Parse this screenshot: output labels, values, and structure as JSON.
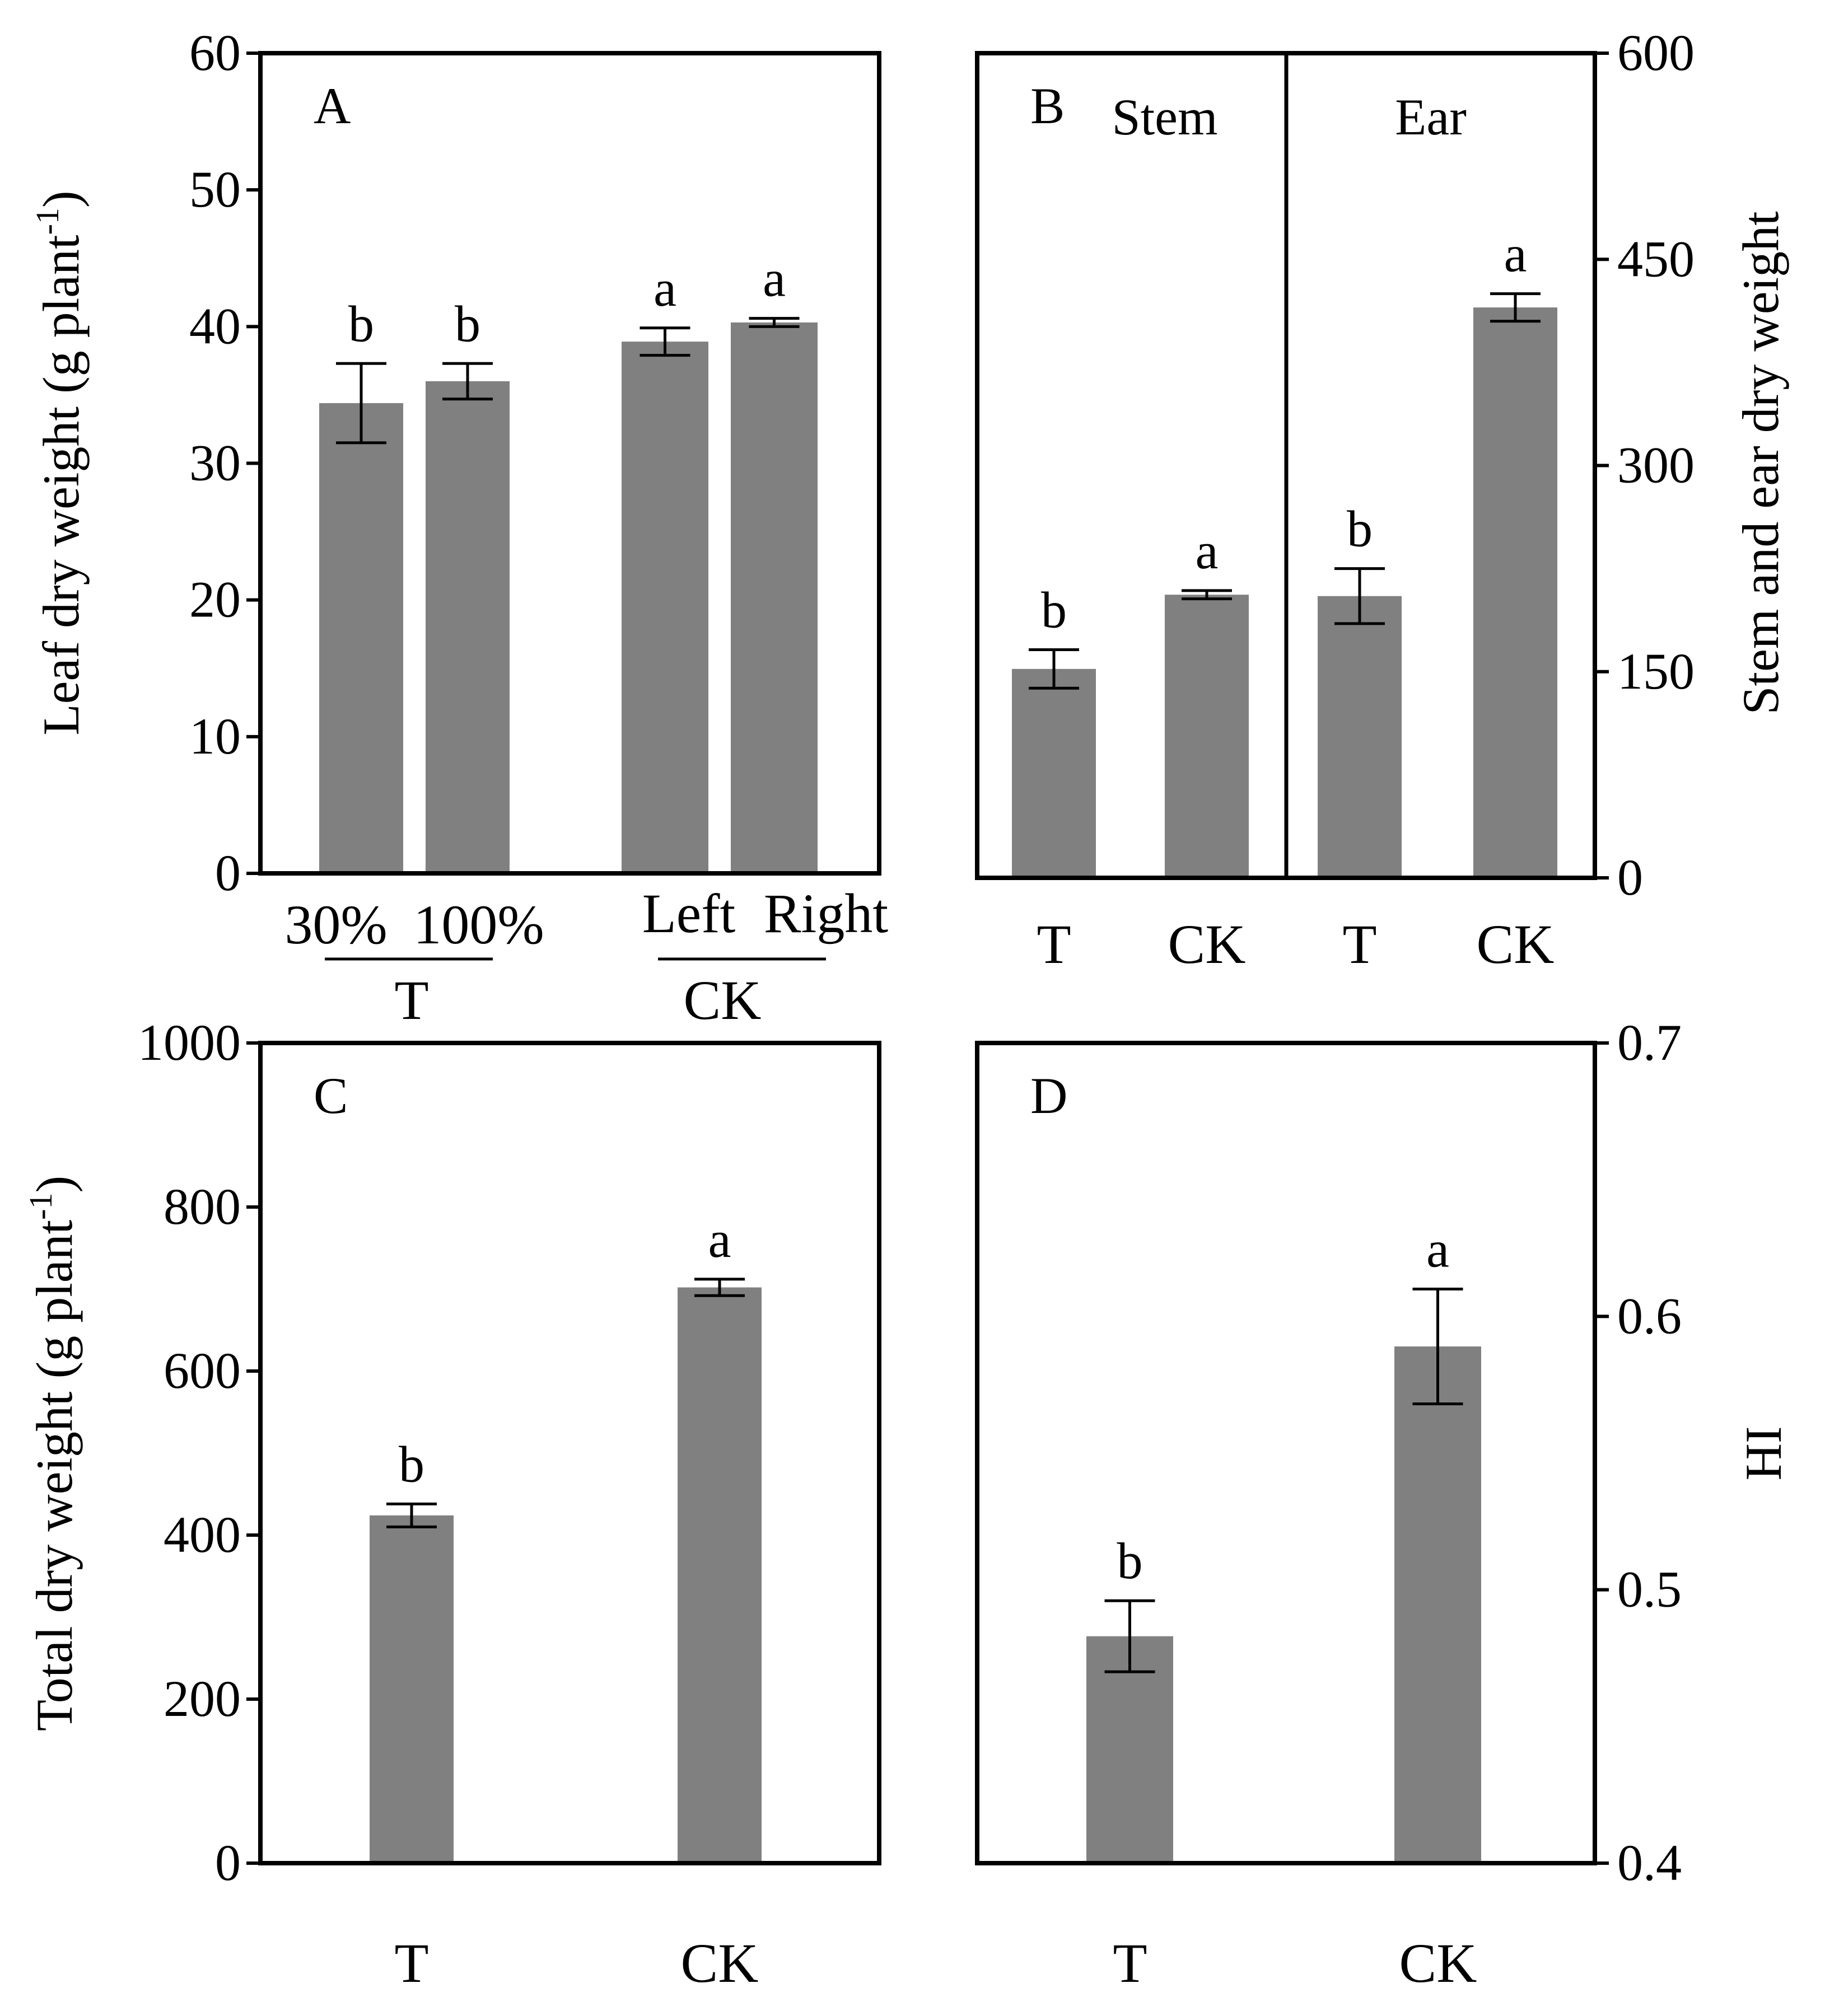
{
  "colors": {
    "bar": "#808080",
    "axis": "#000000",
    "background": "#ffffff"
  },
  "chart_data": [
    {
      "panel": "A",
      "type": "bar",
      "ylabel": "Leaf dry weight (g plant",
      "ylabel_sup": "-1",
      "ylabel_close": ")",
      "ylim": [
        0,
        60
      ],
      "yticks": [
        0,
        10,
        20,
        30,
        40,
        50,
        60
      ],
      "categories": [
        "30%",
        "100%",
        "Left",
        "Right"
      ],
      "groups": [
        {
          "label": "T",
          "members": [
            "30%",
            "100%"
          ]
        },
        {
          "label": "CK",
          "members": [
            "Left",
            "Right"
          ]
        }
      ],
      "values": [
        34.4,
        36.0,
        38.9,
        40.3
      ],
      "errors": [
        2.9,
        1.3,
        1.0,
        0.3
      ],
      "significance": [
        "b",
        "b",
        "a",
        "a"
      ]
    },
    {
      "panel": "B",
      "type": "bar",
      "ylabel": "Stem and ear dry weight",
      "yaxis_side": "right",
      "ylim": [
        0,
        600
      ],
      "yticks": [
        0,
        150,
        300,
        450,
        600
      ],
      "sections": [
        "Stem",
        "Ear"
      ],
      "categories": [
        "T",
        "CK",
        "T",
        "CK"
      ],
      "values": [
        152,
        206,
        205,
        415
      ],
      "errors": [
        14,
        3,
        20,
        10
      ],
      "significance": [
        "b",
        "a",
        "b",
        "a"
      ]
    },
    {
      "panel": "C",
      "type": "bar",
      "ylabel": "Total dry weight (g plant",
      "ylabel_sup": "-1",
      "ylabel_close": ")",
      "ylim": [
        0,
        1000
      ],
      "yticks": [
        0,
        200,
        400,
        600,
        800,
        1000
      ],
      "categories": [
        "T",
        "CK"
      ],
      "values": [
        424,
        702
      ],
      "errors": [
        14,
        10
      ],
      "significance": [
        "b",
        "a"
      ]
    },
    {
      "panel": "D",
      "type": "bar",
      "ylabel": "HI",
      "yaxis_side": "right",
      "ylim": [
        0.4,
        0.7
      ],
      "yticks": [
        "0.4",
        "0.5",
        "0.6",
        "0.7"
      ],
      "categories": [
        "T",
        "CK"
      ],
      "values": [
        0.483,
        0.589
      ],
      "errors": [
        0.013,
        0.021
      ],
      "significance": [
        "b",
        "a"
      ]
    }
  ]
}
